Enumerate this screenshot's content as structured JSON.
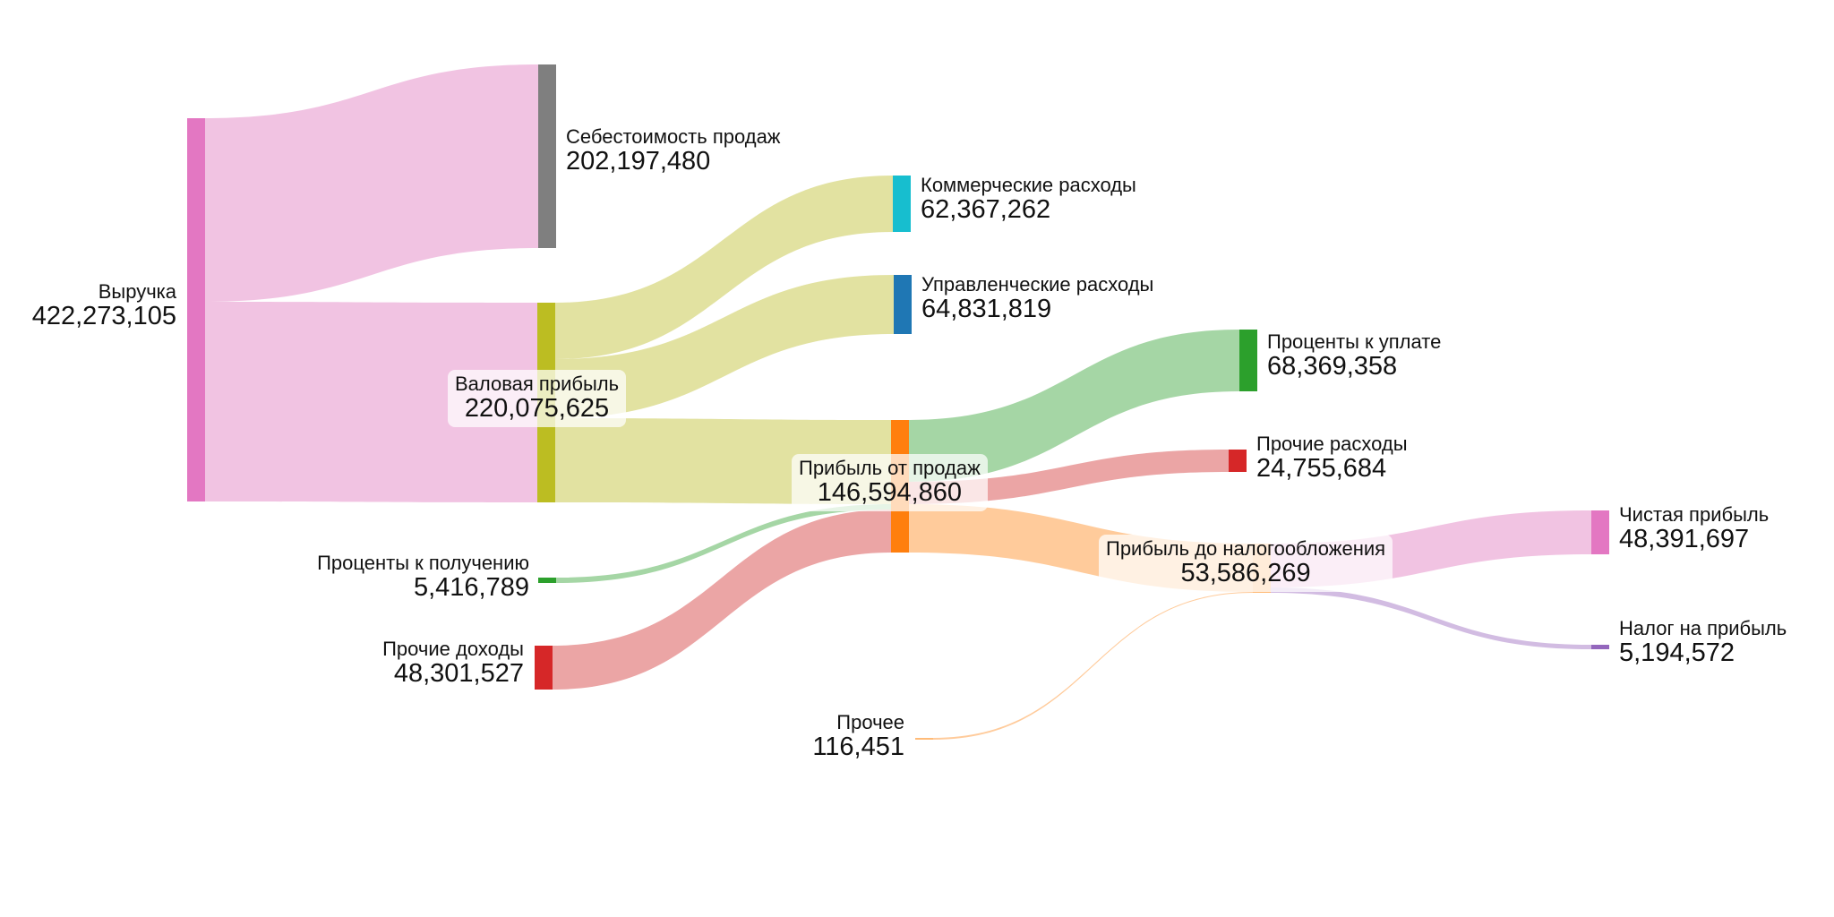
{
  "chart_data": {
    "type": "sankey",
    "title": "",
    "nodes": [
      {
        "id": "revenue",
        "label": "Выручка",
        "value": "422,273,105",
        "amount": 422273105,
        "color": "#e377c2",
        "column": 0,
        "label_side": "left"
      },
      {
        "id": "cogs",
        "label": "Себестоимость продаж",
        "value": "202,197,480",
        "amount": 202197480,
        "color": "#7f7f7f",
        "column": 1,
        "label_side": "right"
      },
      {
        "id": "gross",
        "label": "Валовая прибыль",
        "value": "220,075,625",
        "amount": 220075625,
        "color": "#bcbd22",
        "column": 1,
        "label_side": "center"
      },
      {
        "id": "interest_income",
        "label": "Проценты к получению",
        "value": "5,416,789",
        "amount": 5416789,
        "color": "#2ca02c",
        "column": 1,
        "label_side": "left"
      },
      {
        "id": "other_income",
        "label": "Прочие доходы",
        "value": "48,301,527",
        "amount": 48301527,
        "color": "#d62728",
        "column": 1,
        "label_side": "left"
      },
      {
        "id": "selling",
        "label": "Коммерческие расходы",
        "value": "62,367,262",
        "amount": 62367262,
        "color": "#17becf",
        "column": 2,
        "label_side": "right"
      },
      {
        "id": "admin",
        "label": "Управленческие расходы",
        "value": "64,831,819",
        "amount": 64831819,
        "color": "#1f77b4",
        "column": 2,
        "label_side": "right"
      },
      {
        "id": "op_profit",
        "label": "Прибыль от продаж",
        "value": "146,594,860",
        "amount": 146594860,
        "color": "#ff7f0e",
        "column": 2,
        "label_side": "center"
      },
      {
        "id": "other",
        "label": "Прочее",
        "value": "116,451",
        "amount": 116451,
        "color": "#ffbb78",
        "column": 2,
        "label_side": "left"
      },
      {
        "id": "interest_paid",
        "label": "Проценты к уплате",
        "value": "68,369,358",
        "amount": 68369358,
        "color": "#2ca02c",
        "column": 3,
        "label_side": "right"
      },
      {
        "id": "other_exp",
        "label": "Прочие расходы",
        "value": "24,755,684",
        "amount": 24755684,
        "color": "#d62728",
        "column": 3,
        "label_side": "right"
      },
      {
        "id": "pretax",
        "label": "Прибыль до налогообложения",
        "value": "53,586,269",
        "amount": 53586269,
        "color": "#ffbb78",
        "column": 3,
        "label_side": "center"
      },
      {
        "id": "net",
        "label": "Чистая прибыль",
        "value": "48,391,697",
        "amount": 48391697,
        "color": "#e377c2",
        "column": 4,
        "label_side": "right"
      },
      {
        "id": "tax",
        "label": "Налог на прибыль",
        "value": "5,194,572",
        "amount": 5194572,
        "color": "#9467bd",
        "column": 4,
        "label_side": "right"
      }
    ],
    "links": [
      {
        "source": "revenue",
        "target": "cogs",
        "value": 202197480,
        "color": "#f0c0e0"
      },
      {
        "source": "revenue",
        "target": "gross",
        "value": 220075625,
        "color": "#f0c0e0"
      },
      {
        "source": "gross",
        "target": "selling",
        "value": 62367262,
        "color": "#e0e09c"
      },
      {
        "source": "gross",
        "target": "admin",
        "value": 64831819,
        "color": "#e0e09c"
      },
      {
        "source": "gross",
        "target": "op_profit",
        "value": 92876544,
        "color": "#e0e09c"
      },
      {
        "source": "op_profit",
        "target": "interest_paid",
        "value": 68369358,
        "color": "#a0d4a0"
      },
      {
        "source": "op_profit",
        "target": "other_exp",
        "value": 24755684,
        "color": "#eaa0a0"
      },
      {
        "source": "op_profit",
        "target": "pretax",
        "value": 53469818,
        "color": "#ffc896"
      },
      {
        "source": "interest_income",
        "target": "op_profit",
        "value": 5416789,
        "color": "#a0d4a0"
      },
      {
        "source": "other_income",
        "target": "op_profit",
        "value": 48301527,
        "color": "#eaa0a0"
      },
      {
        "source": "other",
        "target": "pretax",
        "value": 116451,
        "color": "#ffc896"
      },
      {
        "source": "pretax",
        "target": "net",
        "value": 48391697,
        "color": "#f0c0e0"
      },
      {
        "source": "pretax",
        "target": "tax",
        "value": 5194572,
        "color": "#d0b8e0"
      }
    ]
  }
}
